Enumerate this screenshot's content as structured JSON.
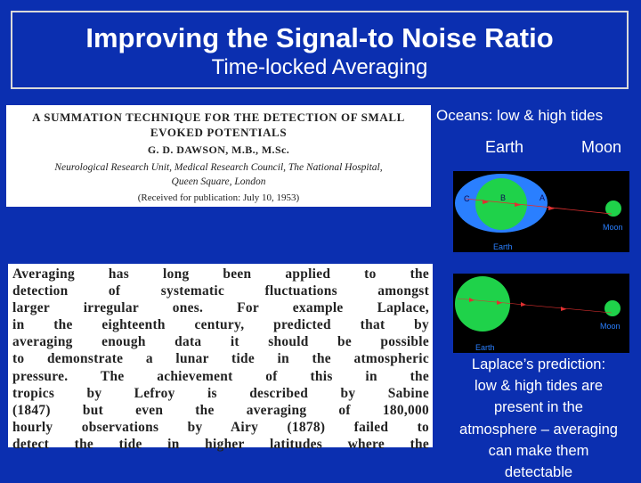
{
  "slide": {
    "title": "Improving the Signal-to Noise Ratio",
    "subtitle": "Time-locked Averaging"
  },
  "paper_header": {
    "title_line1": "A SUMMATION TECHNIQUE FOR THE DETECTION OF SMALL",
    "title_line2": "EVOKED POTENTIALS",
    "author": "G. D. DAWSON, M.B., M.Sc.",
    "affiliation_line1": "Neurological Research Unit, Medical Research Council, The National Hospital,",
    "affiliation_line2": "Queen Square, London",
    "received": "(Received for publication: July 10, 1953)"
  },
  "paper_body": {
    "lines": [
      "Averaging has long been applied to the",
      "detection of systematic fluctuations amongst",
      "larger irregular ones. For example Laplace,",
      "in the eighteenth century, predicted that by",
      "averaging enough data it should be possible",
      "to demonstrate a lunar tide in the atmospheric",
      "pressure. The achievement of this in the",
      "tropics by Lefroy is described by Sabine",
      "(1847) but even the averaging of 180,000",
      "hourly observations by Airy (1878) failed to",
      "detect the tide in higher latitudes where the"
    ]
  },
  "tides": {
    "heading": "Oceans: low & high tides",
    "earth_label": "Earth",
    "moon_label": "Moon",
    "panel1": {
      "c_label": "C",
      "b_label": "B",
      "a_label": "A",
      "moon": "Moon",
      "earth": "Earth"
    },
    "panel2": {
      "moon": "Moon",
      "earth": "Earth"
    }
  },
  "laplace_text": {
    "line1": "Laplace’s prediction:",
    "line2": "low & high tides are",
    "line3": "present in the",
    "line4": "atmosphere – averaging",
    "line5": "can make them",
    "line6": "detectable"
  },
  "colors": {
    "background": "#0b2fb0",
    "ocean": "#2a7fff",
    "earth": "#1fd24a",
    "arrow": "#e03030"
  }
}
